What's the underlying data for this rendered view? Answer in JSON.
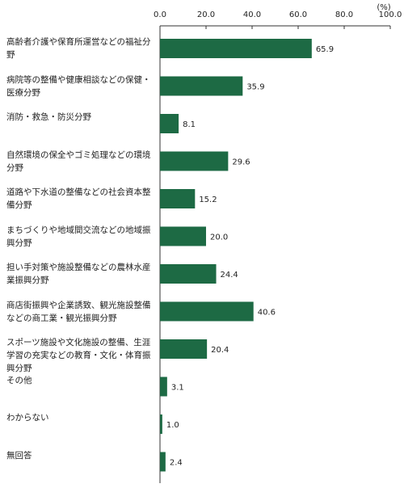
{
  "chart_data": {
    "type": "bar",
    "orientation": "horizontal",
    "categories": [
      "高齢者介護や保育所運営などの福祉分野",
      "病院等の整備や健康相談などの保健・医療分野",
      "消防・救急・防災分野",
      "自然環境の保全やゴミ処理などの環境分野",
      "道路や下水道の整備などの社会資本整備分野",
      "まちづくりや地域間交流などの地域振興分野",
      "担い手対策や施設整備などの農林水産業振興分野",
      "商店街振興や企業誘致、観光施設整備などの商工業・観光振興分野",
      "スポーツ施設や文化施設の整備、生涯学習の充実などの教育・文化・体育振興分野",
      "その他",
      "わからない",
      "無回答"
    ],
    "values": [
      65.9,
      35.9,
      8.1,
      29.6,
      15.2,
      20.0,
      24.4,
      40.6,
      20.4,
      3.1,
      1.0,
      2.4
    ],
    "value_labels": [
      "65.9",
      "35.9",
      "8.1",
      "29.6",
      "15.2",
      "20.0",
      "24.4",
      "40.6",
      "20.4",
      "3.1",
      "1.0",
      "2.4"
    ],
    "color": "#1d6a44",
    "xlim": [
      0,
      100
    ],
    "xticks": [
      {
        "value": 0,
        "label": "0.0"
      },
      {
        "value": 20,
        "label": "20.0"
      },
      {
        "value": 40,
        "label": "40.0"
      },
      {
        "value": 60,
        "label": "60.0"
      },
      {
        "value": 80,
        "label": "80.0"
      },
      {
        "value": 100,
        "label": "100.0"
      }
    ],
    "unit_label": "(%)",
    "grid": false
  }
}
